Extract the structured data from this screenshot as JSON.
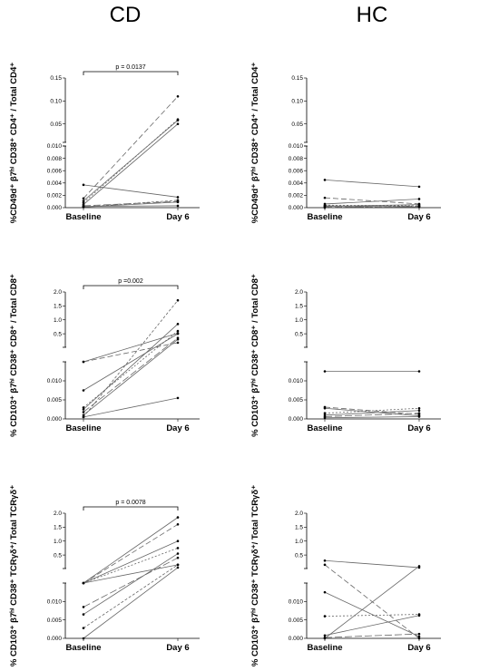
{
  "column_titles": [
    "CD",
    "HC"
  ],
  "chart_data": [
    {
      "type": "line",
      "group": "CD",
      "categories": [
        "Baseline",
        "Day 6"
      ],
      "ylabel": "%CD49d⁺ β7ʰⁱ CD38⁺ CD4⁺ / Total CD4⁺",
      "axis_break": 0.01,
      "lower_ticks": [
        "0.000",
        "0.002",
        "0.004",
        "0.006",
        "0.008",
        "0.010"
      ],
      "upper_ticks": [
        "0.05",
        "0.10",
        "0.15"
      ],
      "lower_range": [
        0,
        0.01
      ],
      "upper_range": [
        0.01,
        0.15
      ],
      "significance": "p = 0.0137",
      "pairs": [
        [
          0.0037,
          0.0017
        ],
        [
          0.0015,
          0.11
        ],
        [
          0.0011,
          0.058
        ],
        [
          0.0008,
          0.06
        ],
        [
          0.0005,
          0.05
        ],
        [
          0.0003,
          0.001
        ],
        [
          0.0001,
          0.0009
        ],
        [
          0.0001,
          0.0012
        ],
        [
          0.0002,
          0.0003
        ]
      ]
    },
    {
      "type": "line",
      "group": "HC",
      "categories": [
        "Baseline",
        "Day 6"
      ],
      "ylabel": "%CD49d⁺ β7ʰⁱ CD38⁺ CD4⁺ / Total CD4⁺",
      "axis_break": 0.01,
      "lower_ticks": [
        "0.000",
        "0.002",
        "0.004",
        "0.006",
        "0.008",
        "0.010"
      ],
      "upper_ticks": [
        "0.05",
        "0.10",
        "0.15"
      ],
      "lower_range": [
        0,
        0.01
      ],
      "upper_range": [
        0.01,
        0.15
      ],
      "significance": "",
      "pairs": [
        [
          0.0045,
          0.0034
        ],
        [
          0.0016,
          0.0006
        ],
        [
          0.0006,
          0.0014
        ],
        [
          0.0004,
          0.0003
        ],
        [
          0.0002,
          0.0005
        ],
        [
          0.0001,
          0.0002
        ],
        [
          0.0003,
          0.0001
        ],
        [
          0.0,
          0.0003
        ]
      ]
    },
    {
      "type": "line",
      "group": "CD",
      "categories": [
        "Baseline",
        "Day 6"
      ],
      "ylabel": "% CD103⁺ β7ʰⁱ CD38⁺ CD8⁺ / Total CD8⁺",
      "axis_break": 0.015,
      "lower_ticks": [
        "0.000",
        "0.005",
        "0.010"
      ],
      "upper_ticks": [
        "0.5",
        "1.0",
        "1.5",
        "2.0"
      ],
      "lower_range": [
        0,
        0.015
      ],
      "upper_range": [
        0.015,
        2.0
      ],
      "significance": "p =0.002",
      "pairs": [
        [
          0.015,
          0.52
        ],
        [
          0.015,
          0.18
        ],
        [
          0.0075,
          0.5
        ],
        [
          0.003,
          0.6
        ],
        [
          0.0025,
          0.85
        ],
        [
          0.0018,
          0.35
        ],
        [
          0.001,
          0.3
        ],
        [
          0.0005,
          1.7
        ],
        [
          0.0005,
          0.0055
        ]
      ]
    },
    {
      "type": "line",
      "group": "HC",
      "categories": [
        "Baseline",
        "Day 6"
      ],
      "ylabel": "% CD103⁺ β7ʰⁱ CD38⁺ CD8⁺ / Total CD8⁺",
      "axis_break": 0.015,
      "lower_ticks": [
        "0.000",
        "0.005",
        "0.010"
      ],
      "upper_ticks": [
        "0.5",
        "1.0",
        "1.5",
        "2.0"
      ],
      "lower_range": [
        0,
        0.015
      ],
      "upper_range": [
        0.015,
        2.0
      ],
      "significance": "",
      "pairs": [
        [
          0.0125,
          0.0125
        ],
        [
          0.0031,
          0.0012
        ],
        [
          0.0028,
          0.0008
        ],
        [
          0.0015,
          0.0028
        ],
        [
          0.001,
          0.0022
        ],
        [
          0.0006,
          0.0015
        ],
        [
          0.0003,
          0.0006
        ]
      ]
    },
    {
      "type": "line",
      "group": "CD",
      "categories": [
        "Baseline",
        "Day 6"
      ],
      "ylabel": "% CD103⁺ β7ʰⁱ CD38⁺ TCRγδ⁺/ Total TCRγδ⁺",
      "axis_break": 0.015,
      "lower_ticks": [
        "0.000",
        "0.005",
        "0.010"
      ],
      "upper_ticks": [
        "0.5",
        "1.0",
        "1.5",
        "2.0"
      ],
      "lower_range": [
        0,
        0.015
      ],
      "upper_range": [
        0.015,
        2.0
      ],
      "significance": "p = 0.0078",
      "pairs": [
        [
          0.015,
          1.85
        ],
        [
          0.015,
          1.6
        ],
        [
          0.015,
          1.0
        ],
        [
          0.015,
          0.75
        ],
        [
          0.015,
          0.15
        ],
        [
          0.0085,
          0.4
        ],
        [
          0.0065,
          0.55
        ],
        [
          0.0028,
          0.15
        ],
        [
          0.0,
          0.05
        ]
      ]
    },
    {
      "type": "line",
      "group": "HC",
      "categories": [
        "Baseline",
        "Day 6"
      ],
      "ylabel": "% CD103⁺ β7ʰⁱ CD38⁺ TCRγδ⁺/ Total TCRγδ⁺",
      "axis_break": 0.015,
      "lower_ticks": [
        "0.000",
        "0.005",
        "0.010"
      ],
      "upper_ticks": [
        "0.5",
        "1.0",
        "1.5",
        "2.0"
      ],
      "lower_range": [
        0,
        0.015
      ],
      "upper_range": [
        0.015,
        2.0
      ],
      "significance": "",
      "pairs": [
        [
          0.3,
          0.05
        ],
        [
          0.15,
          0.0
        ],
        [
          0.0125,
          0.0005
        ],
        [
          0.006,
          0.0065
        ],
        [
          0.0008,
          0.0062
        ],
        [
          0.0002,
          0.0012
        ],
        [
          0.0,
          0.1
        ]
      ]
    }
  ]
}
